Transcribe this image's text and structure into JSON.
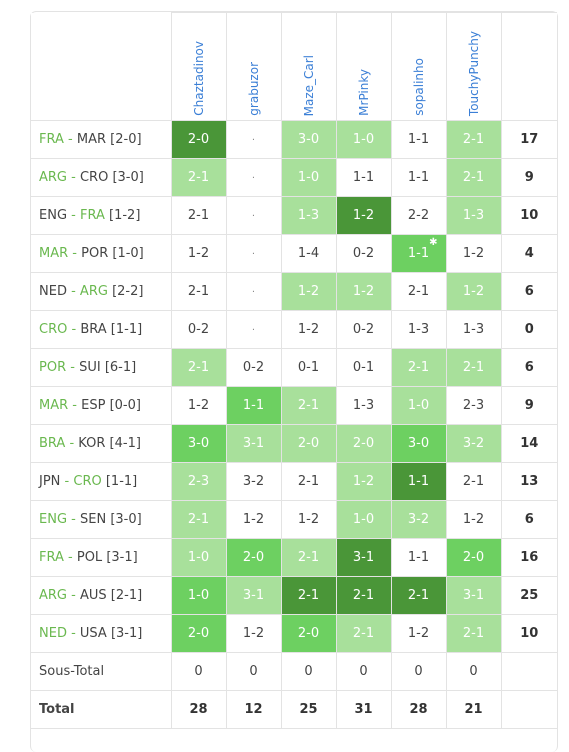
{
  "players": [
    "Chaztadinov",
    "grabuzor",
    "Maze_Carl",
    "MrPinky",
    "sopalinho",
    "TouchyPunchy"
  ],
  "colors": {
    "none": "#ffffff",
    "light": "#a8e09b",
    "medium": "#6dd061",
    "dark": "#4a9638",
    "team_highlight": "#6ab84f"
  },
  "rows": [
    {
      "home": "FRA",
      "away": "MAR",
      "score": "[2-0]",
      "home_hl": true,
      "away_hl": false,
      "points": "17",
      "cells": [
        {
          "v": "2-0",
          "c": 3
        },
        {
          "v": "·",
          "c": -1
        },
        {
          "v": "3-0",
          "c": 1
        },
        {
          "v": "1-0",
          "c": 1
        },
        {
          "v": "1-1",
          "c": 0
        },
        {
          "v": "2-1",
          "c": 1
        }
      ]
    },
    {
      "home": "ARG",
      "away": "CRO",
      "score": "[3-0]",
      "home_hl": true,
      "away_hl": false,
      "points": "9",
      "cells": [
        {
          "v": "2-1",
          "c": 1
        },
        {
          "v": "·",
          "c": -1
        },
        {
          "v": "1-0",
          "c": 1
        },
        {
          "v": "1-1",
          "c": 0
        },
        {
          "v": "1-1",
          "c": 0
        },
        {
          "v": "2-1",
          "c": 1
        }
      ]
    },
    {
      "home": "ENG",
      "away": "FRA",
      "score": "[1-2]",
      "home_hl": false,
      "away_hl": true,
      "points": "10",
      "cells": [
        {
          "v": "2-1",
          "c": 0
        },
        {
          "v": "·",
          "c": -1
        },
        {
          "v": "1-3",
          "c": 1
        },
        {
          "v": "1-2",
          "c": 3
        },
        {
          "v": "2-2",
          "c": 0
        },
        {
          "v": "1-3",
          "c": 1
        }
      ]
    },
    {
      "home": "MAR",
      "away": "POR",
      "score": "[1-0]",
      "home_hl": true,
      "away_hl": false,
      "points": "4",
      "cells": [
        {
          "v": "1-2",
          "c": 0
        },
        {
          "v": "·",
          "c": -1
        },
        {
          "v": "1-4",
          "c": 0
        },
        {
          "v": "0-2",
          "c": 0
        },
        {
          "v": "1-1",
          "c": 2,
          "star": true
        },
        {
          "v": "1-2",
          "c": 0
        }
      ]
    },
    {
      "home": "NED",
      "away": "ARG",
      "score": "[2-2]",
      "home_hl": false,
      "away_hl": true,
      "points": "6",
      "cells": [
        {
          "v": "2-1",
          "c": 0
        },
        {
          "v": "·",
          "c": -1
        },
        {
          "v": "1-2",
          "c": 1
        },
        {
          "v": "1-2",
          "c": 1
        },
        {
          "v": "2-1",
          "c": 0
        },
        {
          "v": "1-2",
          "c": 1
        }
      ]
    },
    {
      "home": "CRO",
      "away": "BRA",
      "score": "[1-1]",
      "home_hl": true,
      "away_hl": false,
      "points": "0",
      "cells": [
        {
          "v": "0-2",
          "c": 0
        },
        {
          "v": "·",
          "c": -1
        },
        {
          "v": "1-2",
          "c": 0
        },
        {
          "v": "0-2",
          "c": 0
        },
        {
          "v": "1-3",
          "c": 0
        },
        {
          "v": "1-3",
          "c": 0
        }
      ]
    },
    {
      "home": "POR",
      "away": "SUI",
      "score": "[6-1]",
      "home_hl": true,
      "away_hl": false,
      "points": "6",
      "cells": [
        {
          "v": "2-1",
          "c": 1
        },
        {
          "v": "0-2",
          "c": 0
        },
        {
          "v": "0-1",
          "c": 0
        },
        {
          "v": "0-1",
          "c": 0
        },
        {
          "v": "2-1",
          "c": 1
        },
        {
          "v": "2-1",
          "c": 1
        }
      ]
    },
    {
      "home": "MAR",
      "away": "ESP",
      "score": "[0-0]",
      "home_hl": true,
      "away_hl": false,
      "points": "9",
      "cells": [
        {
          "v": "1-2",
          "c": 0
        },
        {
          "v": "1-1",
          "c": 2
        },
        {
          "v": "2-1",
          "c": 1
        },
        {
          "v": "1-3",
          "c": 0
        },
        {
          "v": "1-0",
          "c": 1
        },
        {
          "v": "2-3",
          "c": 0
        }
      ]
    },
    {
      "home": "BRA",
      "away": "KOR",
      "score": "[4-1]",
      "home_hl": true,
      "away_hl": false,
      "points": "14",
      "cells": [
        {
          "v": "3-0",
          "c": 2
        },
        {
          "v": "3-1",
          "c": 1
        },
        {
          "v": "2-0",
          "c": 1
        },
        {
          "v": "2-0",
          "c": 1
        },
        {
          "v": "3-0",
          "c": 2
        },
        {
          "v": "3-2",
          "c": 1
        }
      ]
    },
    {
      "home": "JPN",
      "away": "CRO",
      "score": "[1-1]",
      "home_hl": false,
      "away_hl": true,
      "points": "13",
      "cells": [
        {
          "v": "2-3",
          "c": 1
        },
        {
          "v": "3-2",
          "c": 0
        },
        {
          "v": "2-1",
          "c": 0
        },
        {
          "v": "1-2",
          "c": 1
        },
        {
          "v": "1-1",
          "c": 3
        },
        {
          "v": "2-1",
          "c": 0
        }
      ]
    },
    {
      "home": "ENG",
      "away": "SEN",
      "score": "[3-0]",
      "home_hl": true,
      "away_hl": false,
      "points": "6",
      "cells": [
        {
          "v": "2-1",
          "c": 1
        },
        {
          "v": "1-2",
          "c": 0
        },
        {
          "v": "1-2",
          "c": 0
        },
        {
          "v": "1-0",
          "c": 1
        },
        {
          "v": "3-2",
          "c": 1
        },
        {
          "v": "1-2",
          "c": 0
        }
      ]
    },
    {
      "home": "FRA",
      "away": "POL",
      "score": "[3-1]",
      "home_hl": true,
      "away_hl": false,
      "points": "16",
      "cells": [
        {
          "v": "1-0",
          "c": 1
        },
        {
          "v": "2-0",
          "c": 2
        },
        {
          "v": "2-1",
          "c": 1
        },
        {
          "v": "3-1",
          "c": 3
        },
        {
          "v": "1-1",
          "c": 0
        },
        {
          "v": "2-0",
          "c": 2
        }
      ]
    },
    {
      "home": "ARG",
      "away": "AUS",
      "score": "[2-1]",
      "home_hl": true,
      "away_hl": false,
      "points": "25",
      "cells": [
        {
          "v": "1-0",
          "c": 2
        },
        {
          "v": "3-1",
          "c": 1
        },
        {
          "v": "2-1",
          "c": 3
        },
        {
          "v": "2-1",
          "c": 3
        },
        {
          "v": "2-1",
          "c": 3
        },
        {
          "v": "3-1",
          "c": 1
        }
      ]
    },
    {
      "home": "NED",
      "away": "USA",
      "score": "[3-1]",
      "home_hl": true,
      "away_hl": false,
      "points": "10",
      "cells": [
        {
          "v": "2-0",
          "c": 2
        },
        {
          "v": "1-2",
          "c": 0
        },
        {
          "v": "2-0",
          "c": 2
        },
        {
          "v": "2-1",
          "c": 1
        },
        {
          "v": "1-2",
          "c": 0
        },
        {
          "v": "2-1",
          "c": 1
        }
      ]
    }
  ],
  "subtotal": {
    "label": "Sous-Total",
    "values": [
      "0",
      "0",
      "0",
      "0",
      "0",
      "0"
    ]
  },
  "total": {
    "label": "Total",
    "values": [
      "28",
      "12",
      "25",
      "31",
      "28",
      "21"
    ]
  }
}
